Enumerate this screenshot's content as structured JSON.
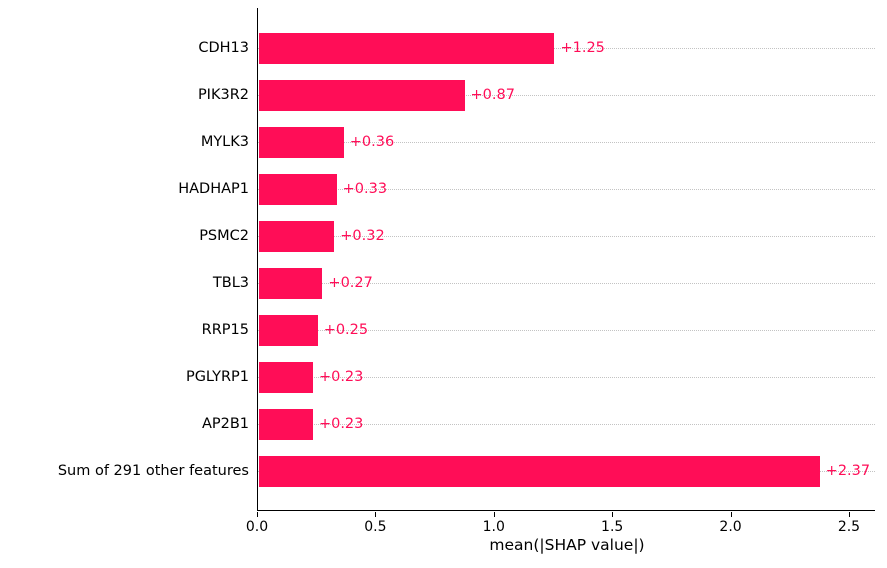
{
  "chart_data": {
    "type": "bar",
    "orientation": "horizontal",
    "title": "",
    "categories": [
      "CDH13",
      "PIK3R2",
      "MYLK3",
      "HADHAP1",
      "PSMC2",
      "TBL3",
      "RRP15",
      "PGLYRP1",
      "AP2B1",
      "Sum of 291 other features"
    ],
    "values": [
      1.25,
      0.87,
      0.36,
      0.33,
      0.32,
      0.27,
      0.25,
      0.23,
      0.23,
      2.37
    ],
    "value_labels": [
      "+1.25",
      "+0.87",
      "+0.36",
      "+0.33",
      "+0.32",
      "+0.27",
      "+0.25",
      "+0.23",
      "+0.23",
      "+2.37"
    ],
    "xlabel": "mean(|SHAP value|)",
    "ylabel": "",
    "x_ticks": [
      0.0,
      0.5,
      1.0,
      1.5,
      2.0,
      2.5
    ],
    "x_tick_labels": [
      "0.0",
      "0.5",
      "1.0",
      "1.5",
      "2.0",
      "2.5"
    ],
    "xlim": [
      0,
      2.61
    ],
    "bar_color": "#ff0d57",
    "value_label_color": "#ff0d57",
    "gridline_style": "horizontal dotted, one per category row",
    "legend": "none",
    "spines": [
      "left",
      "bottom"
    ]
  }
}
